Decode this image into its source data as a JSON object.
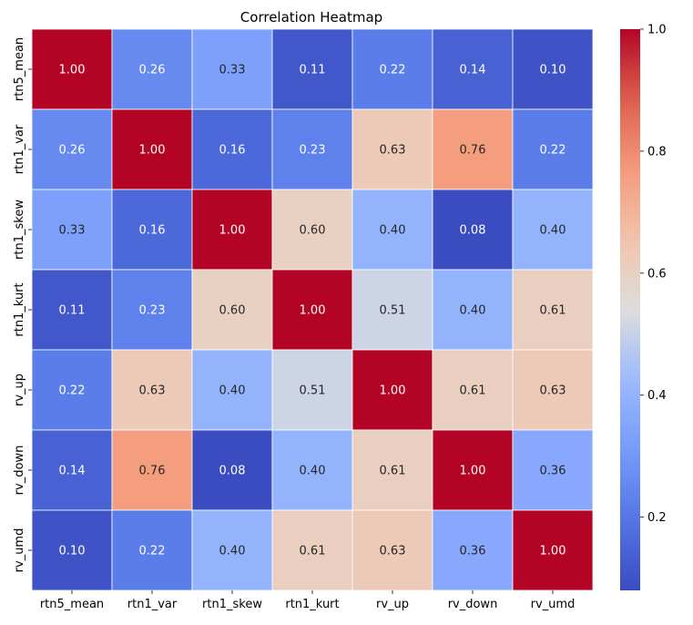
{
  "chart_data": {
    "type": "heatmap",
    "title": "Correlation Heatmap",
    "x_labels": [
      "rtn5_mean",
      "rtn1_var",
      "rtn1_skew",
      "rtn1_kurt",
      "rv_up",
      "rv_down",
      "rv_umd"
    ],
    "y_labels": [
      "rtn5_mean",
      "rtn1_var",
      "rtn1_skew",
      "rtn1_kurt",
      "rv_up",
      "rv_down",
      "rv_umd"
    ],
    "values": [
      [
        1.0,
        0.26,
        0.33,
        0.11,
        0.22,
        0.14,
        0.1
      ],
      [
        0.26,
        1.0,
        0.16,
        0.23,
        0.63,
        0.76,
        0.22
      ],
      [
        0.33,
        0.16,
        1.0,
        0.6,
        0.4,
        0.08,
        0.4
      ],
      [
        0.11,
        0.23,
        0.6,
        1.0,
        0.51,
        0.4,
        0.61
      ],
      [
        0.22,
        0.63,
        0.4,
        0.51,
        1.0,
        0.61,
        0.63
      ],
      [
        0.14,
        0.76,
        0.08,
        0.4,
        0.61,
        1.0,
        0.36
      ],
      [
        0.1,
        0.22,
        0.4,
        0.61,
        0.63,
        0.36,
        1.0
      ]
    ],
    "colormap": "coolwarm",
    "vmin": 0.08,
    "vmax": 1.0,
    "annotation_format": "0.00",
    "colorbar": {
      "ticks": [
        0.2,
        0.4,
        0.6,
        0.8,
        1.0
      ],
      "tick_labels": [
        "0.2",
        "0.4",
        "0.6",
        "0.8",
        "1.0"
      ],
      "position": "right"
    },
    "cell_border_color": "#ffffff"
  }
}
